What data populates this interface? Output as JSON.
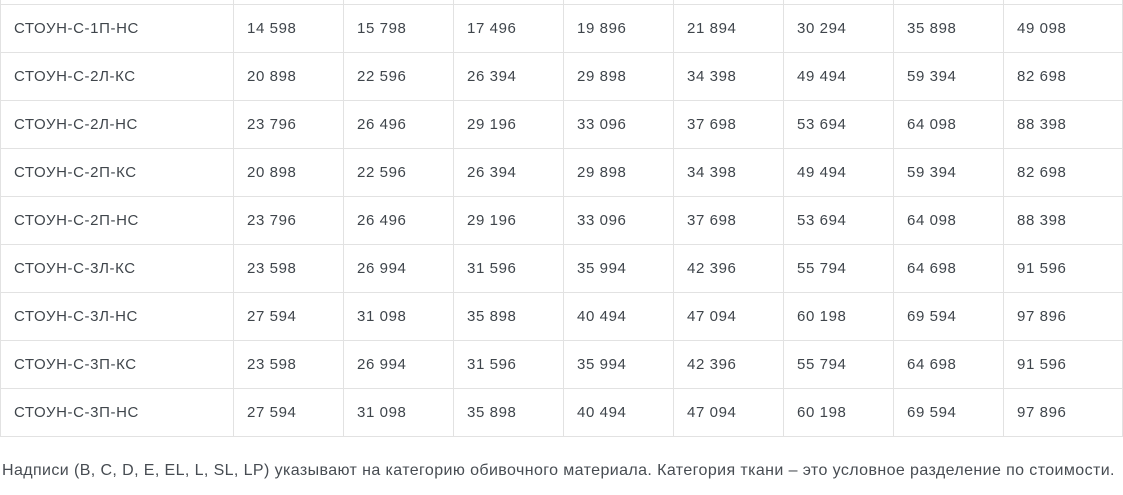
{
  "colors": {
    "background": "#ffffff",
    "border": "#e2e2e2",
    "text": "#3f454b",
    "footnote_text": "#474c52"
  },
  "table": {
    "columns": 9,
    "rows": [
      {
        "name": "СТОУН-С-1П-НС",
        "prices": [
          "14 598",
          "15 798",
          "17 496",
          "19 896",
          "21 894",
          "30 294",
          "35 898",
          "49 098"
        ]
      },
      {
        "name": "СТОУН-С-2Л-КС",
        "prices": [
          "20 898",
          "22 596",
          "26 394",
          "29 898",
          "34 398",
          "49 494",
          "59 394",
          "82 698"
        ]
      },
      {
        "name": "СТОУН-С-2Л-НС",
        "prices": [
          "23 796",
          "26 496",
          "29 196",
          "33 096",
          "37 698",
          "53 694",
          "64 098",
          "88 398"
        ]
      },
      {
        "name": "СТОУН-С-2П-КС",
        "prices": [
          "20 898",
          "22 596",
          "26 394",
          "29 898",
          "34 398",
          "49 494",
          "59 394",
          "82 698"
        ]
      },
      {
        "name": "СТОУН-С-2П-НС",
        "prices": [
          "23 796",
          "26 496",
          "29 196",
          "33 096",
          "37 698",
          "53 694",
          "64 098",
          "88 398"
        ]
      },
      {
        "name": "СТОУН-С-3Л-КС",
        "prices": [
          "23 598",
          "26 994",
          "31 596",
          "35 994",
          "42 396",
          "55 794",
          "64 698",
          "91 596"
        ]
      },
      {
        "name": "СТОУН-С-3Л-НС",
        "prices": [
          "27 594",
          "31 098",
          "35 898",
          "40 494",
          "47 094",
          "60 198",
          "69 594",
          "97 896"
        ]
      },
      {
        "name": "СТОУН-С-3П-КС",
        "prices": [
          "23 598",
          "26 994",
          "31 596",
          "35 994",
          "42 396",
          "55 794",
          "64 698",
          "91 596"
        ]
      },
      {
        "name": "СТОУН-С-3П-НС",
        "prices": [
          "27 594",
          "31 098",
          "35 898",
          "40 494",
          "47 094",
          "60 198",
          "69 594",
          "97 896"
        ]
      }
    ]
  },
  "footnote": "Надписи (B, C, D, E, EL, L, SL, LP) указывают на категорию обивочного материала. Категория ткани – это условное разделение по стоимости."
}
